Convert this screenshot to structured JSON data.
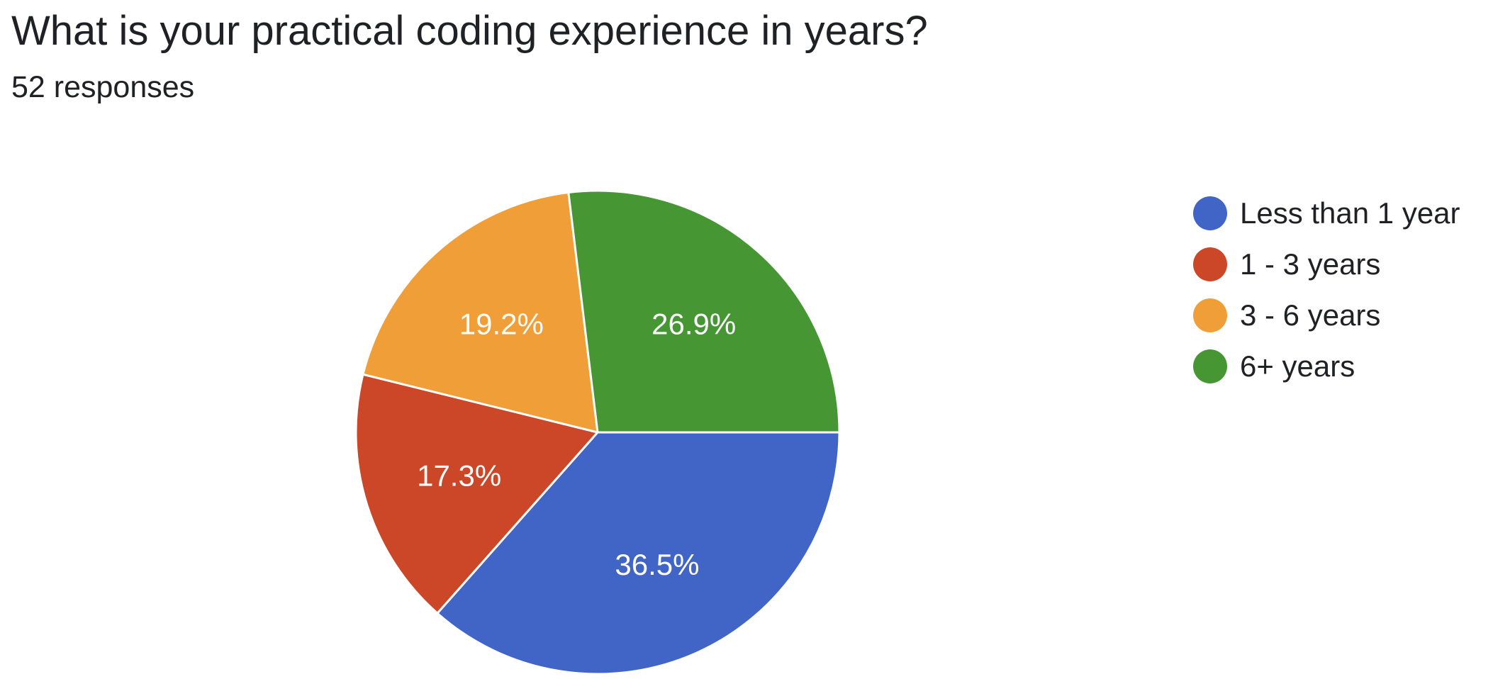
{
  "header": {
    "title": "What is your practical coding experience in years?",
    "responses": "52 responses"
  },
  "chart_data": {
    "type": "pie",
    "title": "What is your practical coding experience in years?",
    "subtitle": "52 responses",
    "categories": [
      "Less than 1 year",
      "1 - 3 years",
      "3 - 6 years",
      "6+ years"
    ],
    "values": [
      36.5,
      17.3,
      19.2,
      26.9
    ],
    "labels": [
      "36.5%",
      "17.3%",
      "19.2%",
      "26.9%"
    ],
    "colors": [
      "#4165C6",
      "#CB4728",
      "#F09E38",
      "#479634"
    ],
    "legend_position": "right"
  }
}
